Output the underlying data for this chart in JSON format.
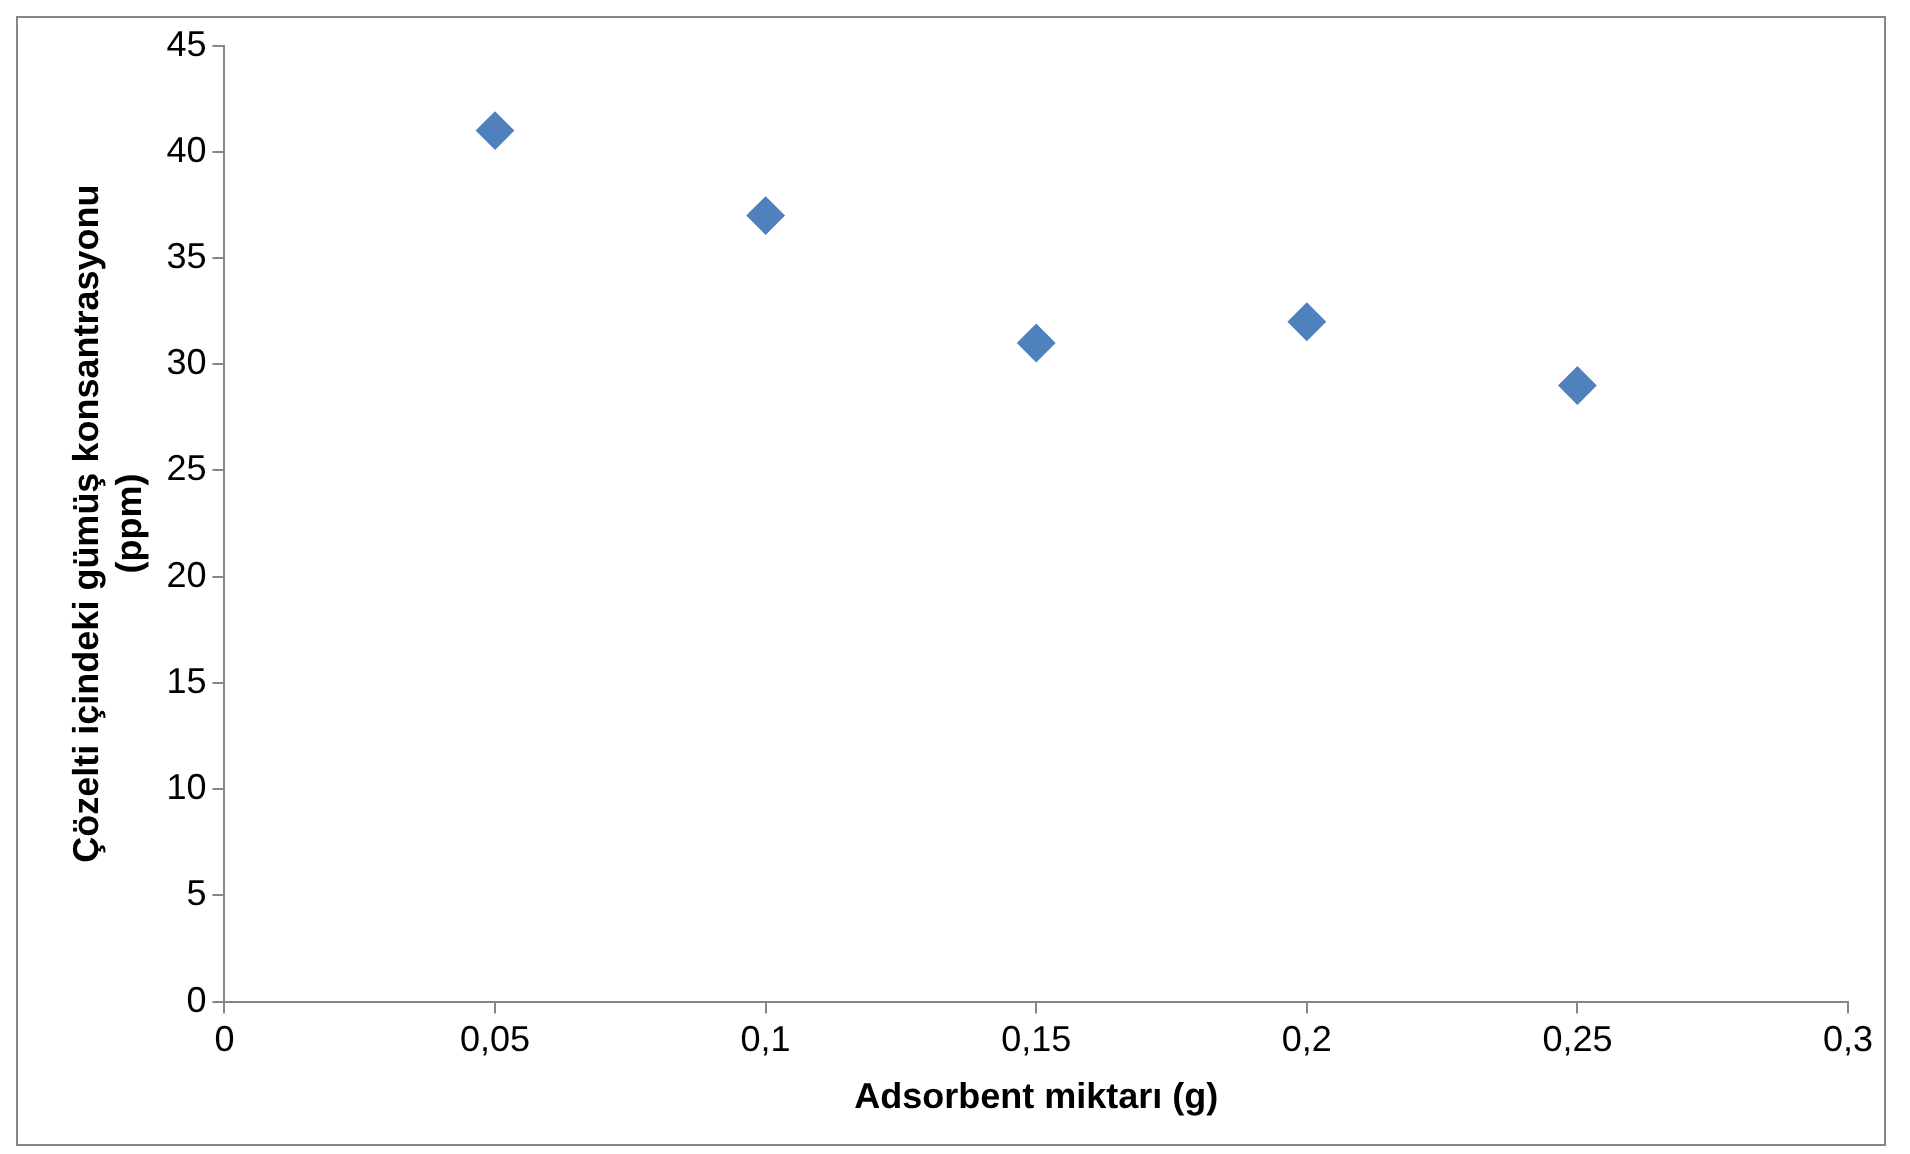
{
  "chart_data": {
    "type": "scatter",
    "xlabel": "Adsorbent miktarı (g)",
    "ylabel": "Çözelti içindeki gümüş konsantrasyonu\n(ppm)",
    "x": [
      0.05,
      0.1,
      0.15,
      0.2,
      0.25
    ],
    "series": [
      {
        "color": "#4f81bd",
        "values": [
          41,
          37,
          31,
          32,
          29
        ]
      }
    ],
    "xlim": [
      0,
      0.3
    ],
    "xticks": [
      0,
      {
        "value": 0.05,
        "label": "0,05"
      },
      {
        "value": 0.1,
        "label": "0,1"
      },
      {
        "value": 0.15,
        "label": "0,15"
      },
      {
        "value": 0.2,
        "label": "0,2"
      },
      {
        "value": 0.25,
        "label": "0,25"
      },
      {
        "value": 0.3,
        "label": "0,3"
      }
    ],
    "ylim": [
      0,
      45
    ],
    "yticks": [
      0,
      5,
      10,
      15,
      20,
      25,
      30,
      35,
      40,
      45
    ],
    "grid": false,
    "legend": false,
    "marker": "diamond"
  }
}
